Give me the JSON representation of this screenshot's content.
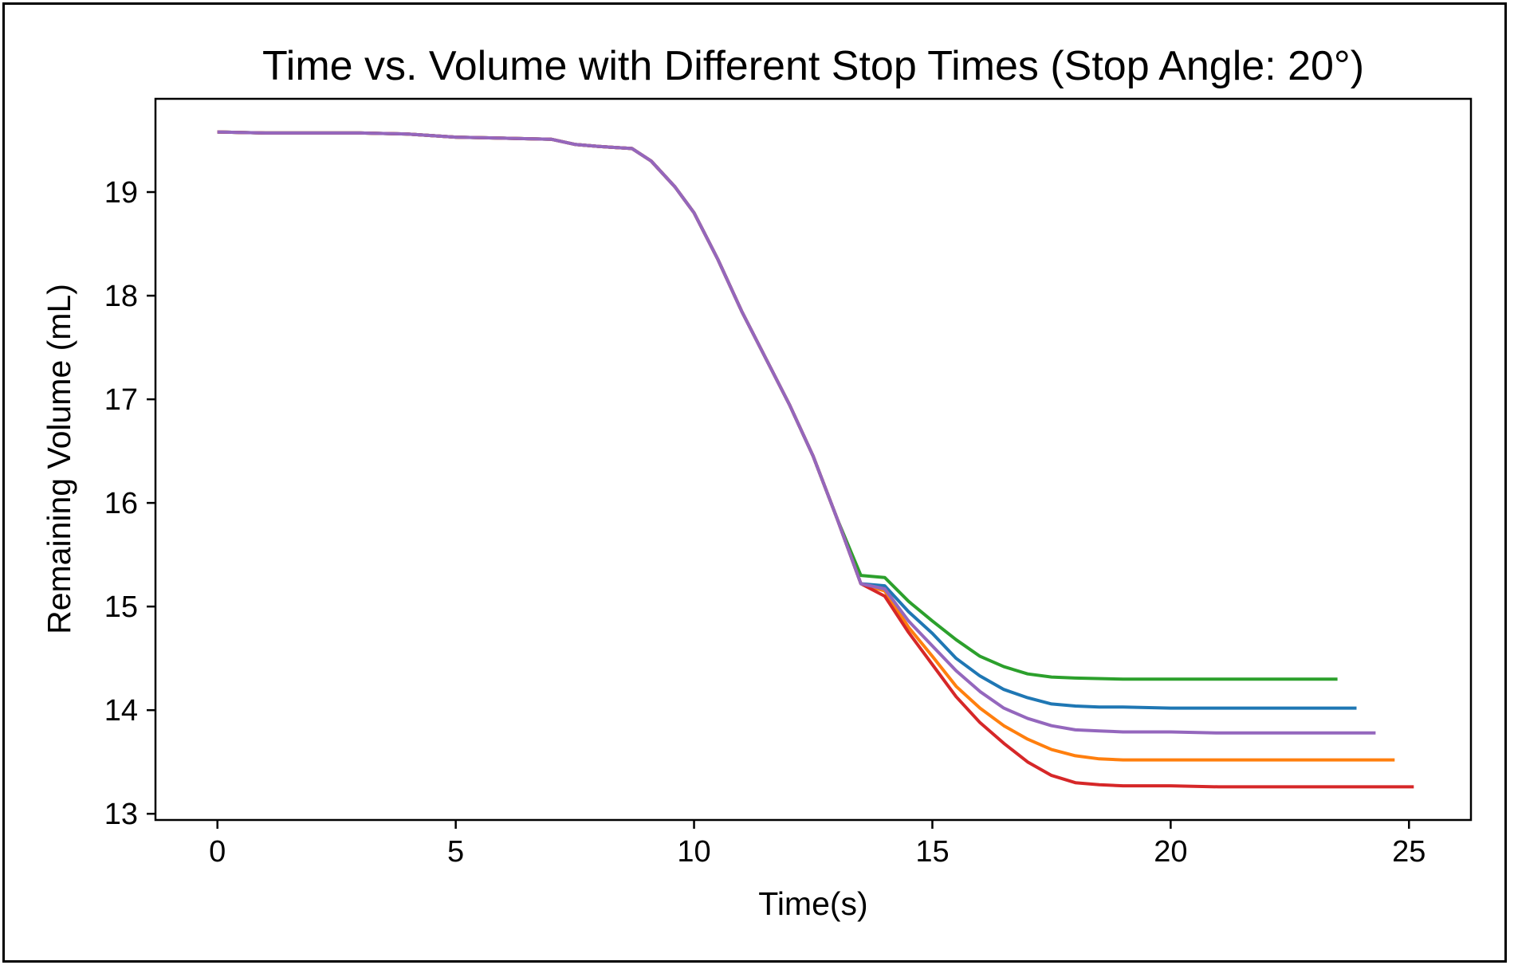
{
  "chart_data": {
    "type": "line",
    "title": "Time vs. Volume with Different Stop Times (Stop Angle: 20°)",
    "xlabel": "Time(s)",
    "ylabel": "Remaining Volume (mL)",
    "xlim": [
      -1.3,
      26.3
    ],
    "ylim": [
      12.94,
      19.9
    ],
    "xticks": [
      0,
      5,
      10,
      15,
      20,
      25
    ],
    "yticks": [
      13,
      14,
      15,
      16,
      17,
      18,
      19
    ],
    "grid": false,
    "legend": "none",
    "series": [
      {
        "color": "#2ca02c",
        "x": [
          0,
          1,
          2,
          3,
          4,
          5,
          6,
          7,
          7.5,
          8,
          8.7,
          9.1,
          9.6,
          10,
          10.5,
          11,
          11.5,
          12,
          12.5,
          13,
          13.5,
          14,
          14.5,
          15,
          15.5,
          16,
          16.5,
          17,
          17.5,
          18,
          19,
          20,
          21,
          22,
          23,
          23.5
        ],
        "y": [
          19.58,
          19.57,
          19.57,
          19.57,
          19.56,
          19.53,
          19.52,
          19.51,
          19.46,
          19.44,
          19.42,
          19.3,
          19.05,
          18.8,
          18.35,
          17.85,
          17.4,
          16.95,
          16.45,
          15.85,
          15.3,
          15.28,
          15.05,
          14.86,
          14.68,
          14.52,
          14.42,
          14.35,
          14.32,
          14.31,
          14.3,
          14.3,
          14.3,
          14.3,
          14.3,
          14.3
        ]
      },
      {
        "color": "#1f77b4",
        "x": [
          0,
          1,
          2,
          3,
          4,
          5,
          6,
          7,
          7.5,
          8,
          8.7,
          9.1,
          9.6,
          10,
          10.5,
          11,
          11.5,
          12,
          12.5,
          13,
          13.5,
          14,
          14.5,
          15,
          15.5,
          16,
          16.5,
          17,
          17.5,
          18,
          18.5,
          19,
          20,
          21,
          22,
          23,
          23.9
        ],
        "y": [
          19.58,
          19.57,
          19.57,
          19.57,
          19.56,
          19.53,
          19.52,
          19.51,
          19.46,
          19.44,
          19.42,
          19.3,
          19.05,
          18.8,
          18.35,
          17.85,
          17.4,
          16.95,
          16.45,
          15.85,
          15.22,
          15.2,
          14.95,
          14.74,
          14.5,
          14.33,
          14.2,
          14.12,
          14.06,
          14.04,
          14.03,
          14.03,
          14.02,
          14.02,
          14.02,
          14.02,
          14.02
        ]
      },
      {
        "color": "#ff7f0e",
        "x": [
          0,
          1,
          2,
          3,
          4,
          5,
          6,
          7,
          7.5,
          8,
          8.7,
          9.1,
          9.6,
          10,
          10.5,
          11,
          11.5,
          12,
          12.5,
          13,
          13.5,
          14,
          14.5,
          15,
          15.5,
          16,
          16.5,
          17,
          17.5,
          18,
          18.5,
          19,
          20,
          21,
          22,
          23,
          24,
          24.7
        ],
        "y": [
          19.58,
          19.57,
          19.57,
          19.57,
          19.56,
          19.53,
          19.52,
          19.51,
          19.46,
          19.44,
          19.42,
          19.3,
          19.05,
          18.8,
          18.35,
          17.85,
          17.4,
          16.95,
          16.45,
          15.85,
          15.22,
          15.15,
          14.8,
          14.52,
          14.23,
          14.02,
          13.85,
          13.72,
          13.62,
          13.56,
          13.53,
          13.52,
          13.52,
          13.52,
          13.52,
          13.52,
          13.52,
          13.52
        ]
      },
      {
        "color": "#d62728",
        "x": [
          0,
          1,
          2,
          3,
          4,
          5,
          6,
          7,
          7.5,
          8,
          8.7,
          9.1,
          9.6,
          10,
          10.5,
          11,
          11.5,
          12,
          12.5,
          13,
          13.5,
          14,
          14.5,
          15,
          15.5,
          16,
          16.5,
          17,
          17.5,
          18,
          18.5,
          19,
          20,
          21,
          22,
          23,
          24,
          25.1
        ],
        "y": [
          19.58,
          19.57,
          19.57,
          19.57,
          19.56,
          19.53,
          19.52,
          19.51,
          19.46,
          19.44,
          19.42,
          19.3,
          19.05,
          18.8,
          18.35,
          17.85,
          17.4,
          16.95,
          16.45,
          15.85,
          15.22,
          15.1,
          14.75,
          14.44,
          14.13,
          13.88,
          13.68,
          13.5,
          13.37,
          13.3,
          13.28,
          13.27,
          13.27,
          13.26,
          13.26,
          13.26,
          13.26,
          13.26
        ]
      },
      {
        "color": "#9467bd",
        "x": [
          0,
          1,
          2,
          3,
          4,
          5,
          6,
          7,
          7.5,
          8,
          8.7,
          9.1,
          9.6,
          10,
          10.5,
          11,
          11.5,
          12,
          12.5,
          13,
          13.5,
          14,
          14.5,
          15,
          15.5,
          16,
          16.5,
          17,
          17.5,
          18,
          18.5,
          19,
          20,
          21,
          22,
          23,
          24,
          24.3
        ],
        "y": [
          19.58,
          19.57,
          19.57,
          19.57,
          19.56,
          19.53,
          19.52,
          19.51,
          19.46,
          19.44,
          19.42,
          19.3,
          19.05,
          18.8,
          18.35,
          17.85,
          17.4,
          16.95,
          16.45,
          15.85,
          15.22,
          15.17,
          14.86,
          14.62,
          14.38,
          14.18,
          14.02,
          13.92,
          13.85,
          13.81,
          13.8,
          13.79,
          13.79,
          13.78,
          13.78,
          13.78,
          13.78,
          13.78
        ]
      }
    ]
  }
}
